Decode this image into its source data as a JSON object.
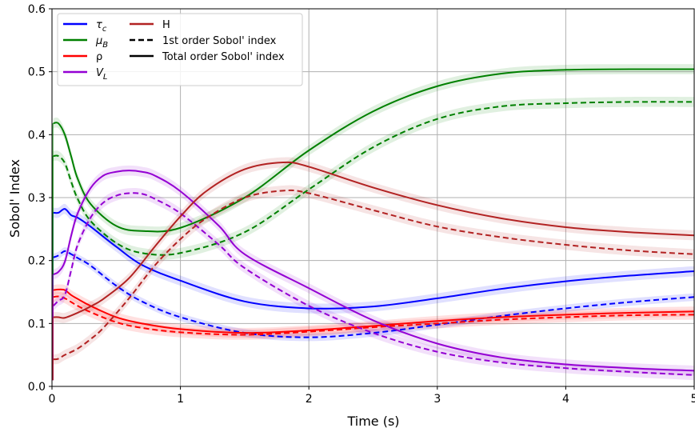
{
  "chart_data": {
    "type": "line",
    "xlabel": "Time (s)",
    "ylabel": "Sobol' Index",
    "xlim": [
      0,
      5
    ],
    "ylim": [
      0,
      0.6
    ],
    "x_ticks": [
      "0",
      "1",
      "2",
      "3",
      "4",
      "5"
    ],
    "y_ticks": [
      "0.0",
      "0.1",
      "0.2",
      "0.3",
      "0.4",
      "0.5",
      "0.6"
    ],
    "grid": true,
    "legend_position": "top-left",
    "legend": {
      "parameters": [
        {
          "label_main": "τ",
          "label_sub": "c",
          "color": "#0000ff"
        },
        {
          "label_main": "μ",
          "label_sub": "B",
          "color": "#008000"
        },
        {
          "label_main": "ρ",
          "label_sub": "",
          "color": "#ff0000"
        },
        {
          "label_main": "V",
          "label_sub": "L",
          "color": "#9400d3"
        },
        {
          "label_main": "H",
          "label_sub": "",
          "color": "#b22222"
        }
      ],
      "styles": [
        {
          "label": "1st order Sobol' index",
          "dash": "dashed"
        },
        {
          "label": "Total order Sobol' index",
          "dash": "solid"
        }
      ]
    },
    "series": [
      {
        "name": "τc total",
        "color": "#0000ff",
        "dash": "solid",
        "band": 0.008,
        "x": [
          0.01,
          0.05,
          0.1,
          0.15,
          0.2,
          0.3,
          0.5,
          0.7,
          1.0,
          1.5,
          2.0,
          2.5,
          3.0,
          3.5,
          4.0,
          4.5,
          5.0
        ],
        "y": [
          0.276,
          0.276,
          0.282,
          0.272,
          0.268,
          0.254,
          0.222,
          0.193,
          0.168,
          0.135,
          0.124,
          0.127,
          0.14,
          0.155,
          0.167,
          0.176,
          0.183
        ]
      },
      {
        "name": "τc 1st",
        "color": "#0000ff",
        "dash": "dashed",
        "band": 0.006,
        "x": [
          0.01,
          0.05,
          0.1,
          0.15,
          0.2,
          0.3,
          0.5,
          0.7,
          1.0,
          1.5,
          2.0,
          2.5,
          3.0,
          3.5,
          4.0,
          4.5,
          5.0
        ],
        "y": [
          0.205,
          0.208,
          0.215,
          0.21,
          0.204,
          0.192,
          0.16,
          0.135,
          0.11,
          0.085,
          0.078,
          0.085,
          0.098,
          0.112,
          0.124,
          0.134,
          0.142
        ]
      },
      {
        "name": "μB total",
        "color": "#008000",
        "dash": "solid",
        "band": 0.008,
        "x": [
          0.01,
          0.05,
          0.1,
          0.15,
          0.2,
          0.3,
          0.5,
          0.7,
          1.0,
          1.5,
          2.0,
          2.5,
          3.0,
          3.5,
          4.0,
          4.5,
          5.0
        ],
        "y": [
          0.418,
          0.418,
          0.4,
          0.365,
          0.33,
          0.29,
          0.255,
          0.247,
          0.252,
          0.3,
          0.375,
          0.437,
          0.477,
          0.497,
          0.503,
          0.504,
          0.504
        ]
      },
      {
        "name": "μB 1st",
        "color": "#008000",
        "dash": "dashed",
        "band": 0.008,
        "x": [
          0.01,
          0.05,
          0.1,
          0.15,
          0.2,
          0.3,
          0.5,
          0.7,
          1.0,
          1.5,
          2.0,
          2.5,
          3.0,
          3.5,
          4.0,
          4.5,
          5.0
        ],
        "y": [
          0.366,
          0.366,
          0.355,
          0.325,
          0.298,
          0.263,
          0.228,
          0.212,
          0.212,
          0.245,
          0.313,
          0.38,
          0.425,
          0.445,
          0.45,
          0.452,
          0.452
        ]
      },
      {
        "name": "ρ total",
        "color": "#ff0000",
        "dash": "solid",
        "band": 0.008,
        "x": [
          0.01,
          0.05,
          0.1,
          0.15,
          0.2,
          0.3,
          0.5,
          0.7,
          1.0,
          1.5,
          2.0,
          2.5,
          3.0,
          3.5,
          4.0,
          4.5,
          5.0
        ],
        "y": [
          0.153,
          0.154,
          0.153,
          0.145,
          0.139,
          0.128,
          0.11,
          0.1,
          0.091,
          0.085,
          0.089,
          0.096,
          0.104,
          0.11,
          0.114,
          0.117,
          0.119
        ]
      },
      {
        "name": "ρ 1st",
        "color": "#ff0000",
        "dash": "dashed",
        "band": 0.008,
        "x": [
          0.01,
          0.05,
          0.1,
          0.15,
          0.2,
          0.3,
          0.5,
          0.7,
          1.0,
          1.5,
          2.0,
          2.5,
          3.0,
          3.5,
          4.0,
          4.5,
          5.0
        ],
        "y": [
          0.142,
          0.143,
          0.14,
          0.134,
          0.128,
          0.118,
          0.102,
          0.093,
          0.086,
          0.082,
          0.087,
          0.094,
          0.1,
          0.106,
          0.11,
          0.113,
          0.114
        ]
      },
      {
        "name": "VL total",
        "color": "#9400d3",
        "dash": "solid",
        "band": 0.008,
        "x": [
          0.01,
          0.05,
          0.1,
          0.15,
          0.2,
          0.3,
          0.4,
          0.5,
          0.6,
          0.7,
          0.8,
          1.0,
          1.3,
          1.5,
          2.0,
          2.5,
          3.0,
          3.5,
          4.0,
          4.5,
          5.0
        ],
        "y": [
          0.178,
          0.182,
          0.198,
          0.24,
          0.275,
          0.315,
          0.335,
          0.341,
          0.343,
          0.341,
          0.335,
          0.31,
          0.255,
          0.21,
          0.156,
          0.105,
          0.068,
          0.046,
          0.035,
          0.029,
          0.025
        ]
      },
      {
        "name": "VL 1st",
        "color": "#9400d3",
        "dash": "dashed",
        "band": 0.008,
        "x": [
          0.01,
          0.05,
          0.1,
          0.15,
          0.2,
          0.3,
          0.4,
          0.5,
          0.6,
          0.7,
          0.8,
          1.0,
          1.3,
          1.5,
          2.0,
          2.5,
          3.0,
          3.5,
          4.0,
          4.5,
          5.0
        ],
        "y": [
          0.128,
          0.136,
          0.145,
          0.185,
          0.225,
          0.268,
          0.292,
          0.303,
          0.307,
          0.306,
          0.298,
          0.275,
          0.225,
          0.188,
          0.128,
          0.085,
          0.055,
          0.038,
          0.029,
          0.023,
          0.018
        ]
      },
      {
        "name": "H total",
        "color": "#b22222",
        "dash": "solid",
        "band": 0.008,
        "x": [
          0.01,
          0.05,
          0.1,
          0.2,
          0.3,
          0.4,
          0.6,
          0.8,
          1.0,
          1.2,
          1.5,
          1.8,
          2.0,
          2.5,
          3.0,
          3.5,
          4.0,
          4.5,
          5.0
        ],
        "y": [
          0.11,
          0.11,
          0.109,
          0.117,
          0.127,
          0.139,
          0.172,
          0.222,
          0.27,
          0.31,
          0.345,
          0.356,
          0.349,
          0.316,
          0.288,
          0.267,
          0.253,
          0.245,
          0.24
        ]
      },
      {
        "name": "H 1st",
        "color": "#b22222",
        "dash": "dashed",
        "band": 0.008,
        "x": [
          0.01,
          0.05,
          0.1,
          0.2,
          0.3,
          0.4,
          0.6,
          0.8,
          1.0,
          1.2,
          1.5,
          1.8,
          2.0,
          2.5,
          3.0,
          3.5,
          4.0,
          4.5,
          5.0
        ],
        "y": [
          0.043,
          0.044,
          0.05,
          0.06,
          0.075,
          0.093,
          0.14,
          0.192,
          0.234,
          0.267,
          0.3,
          0.311,
          0.307,
          0.28,
          0.254,
          0.237,
          0.225,
          0.216,
          0.21
        ]
      }
    ]
  }
}
